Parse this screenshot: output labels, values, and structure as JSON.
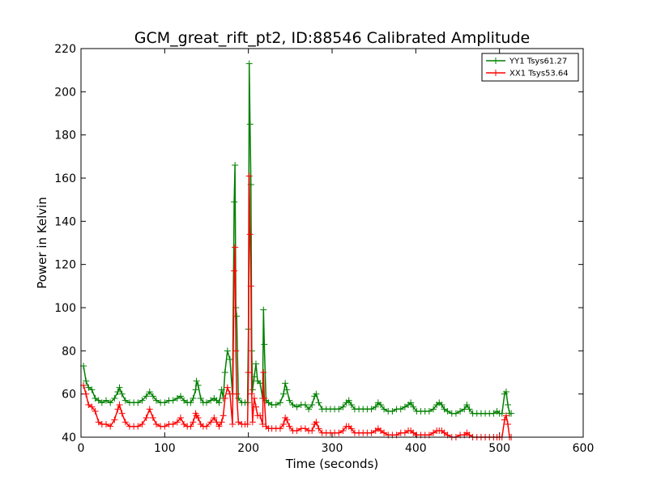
{
  "chart_data": {
    "type": "line",
    "title": "GCM_great_rift_pt2, ID:88546 Calibrated Amplitude",
    "xlabel": "Time (seconds)",
    "ylabel": "Power in Kelvin",
    "xlim": [
      0,
      600
    ],
    "ylim": [
      40,
      220
    ],
    "xticks": [
      0,
      100,
      200,
      300,
      400,
      500,
      600
    ],
    "yticks": [
      40,
      60,
      80,
      100,
      120,
      140,
      160,
      180,
      200,
      220
    ],
    "grid": false,
    "legend_position": "top-right",
    "marker": "plus",
    "series": [
      {
        "name": "YY1 Tsys61.27",
        "color": "#008000",
        "points": [
          [
            3,
            73
          ],
          [
            6,
            66
          ],
          [
            9,
            63
          ],
          [
            13,
            62
          ],
          [
            17,
            58
          ],
          [
            21,
            57
          ],
          [
            25,
            56
          ],
          [
            30,
            57
          ],
          [
            35,
            56
          ],
          [
            40,
            58
          ],
          [
            44,
            61
          ],
          [
            46,
            63
          ],
          [
            49,
            60
          ],
          [
            53,
            57
          ],
          [
            58,
            56
          ],
          [
            63,
            56
          ],
          [
            68,
            56
          ],
          [
            73,
            57
          ],
          [
            78,
            59
          ],
          [
            82,
            61
          ],
          [
            86,
            59
          ],
          [
            90,
            57
          ],
          [
            95,
            56
          ],
          [
            100,
            56
          ],
          [
            105,
            57
          ],
          [
            110,
            57
          ],
          [
            115,
            58
          ],
          [
            119,
            59
          ],
          [
            123,
            57
          ],
          [
            127,
            56
          ],
          [
            131,
            56
          ],
          [
            134,
            58
          ],
          [
            137,
            62
          ],
          [
            138,
            66
          ],
          [
            140,
            64
          ],
          [
            143,
            58
          ],
          [
            146,
            56
          ],
          [
            150,
            56
          ],
          [
            155,
            57
          ],
          [
            159,
            58
          ],
          [
            162,
            57
          ],
          [
            165,
            56
          ],
          [
            168,
            62
          ],
          [
            170,
            58
          ],
          [
            172,
            70
          ],
          [
            175,
            80
          ],
          [
            178,
            76
          ],
          [
            181,
            60
          ],
          [
            183,
            149
          ],
          [
            184,
            166
          ],
          [
            185,
            100
          ],
          [
            186,
            96
          ],
          [
            188,
            58
          ],
          [
            192,
            56
          ],
          [
            196,
            56
          ],
          [
            199,
            56
          ],
          [
            200,
            90
          ],
          [
            201,
            213
          ],
          [
            202,
            185
          ],
          [
            203,
            157
          ],
          [
            204,
            80
          ],
          [
            205,
            62
          ],
          [
            207,
            68
          ],
          [
            209,
            74
          ],
          [
            211,
            66
          ],
          [
            214,
            65
          ],
          [
            217,
            58
          ],
          [
            218,
            99
          ],
          [
            219,
            83
          ],
          [
            221,
            57
          ],
          [
            224,
            56
          ],
          [
            228,
            55
          ],
          [
            233,
            55
          ],
          [
            238,
            56
          ],
          [
            242,
            60
          ],
          [
            244,
            65
          ],
          [
            246,
            62
          ],
          [
            249,
            57
          ],
          [
            253,
            55
          ],
          [
            258,
            54
          ],
          [
            263,
            55
          ],
          [
            268,
            55
          ],
          [
            272,
            53
          ],
          [
            276,
            55
          ],
          [
            279,
            59
          ],
          [
            281,
            60
          ],
          [
            284,
            56
          ],
          [
            288,
            53
          ],
          [
            293,
            53
          ],
          [
            298,
            53
          ],
          [
            303,
            53
          ],
          [
            308,
            53
          ],
          [
            313,
            54
          ],
          [
            317,
            56
          ],
          [
            320,
            57
          ],
          [
            323,
            55
          ],
          [
            327,
            53
          ],
          [
            332,
            53
          ],
          [
            337,
            53
          ],
          [
            342,
            53
          ],
          [
            347,
            53
          ],
          [
            352,
            54
          ],
          [
            355,
            56
          ],
          [
            358,
            55
          ],
          [
            362,
            53
          ],
          [
            367,
            52
          ],
          [
            372,
            52
          ],
          [
            377,
            53
          ],
          [
            382,
            53
          ],
          [
            387,
            54
          ],
          [
            391,
            55
          ],
          [
            394,
            56
          ],
          [
            397,
            54
          ],
          [
            401,
            52
          ],
          [
            406,
            52
          ],
          [
            411,
            52
          ],
          [
            416,
            52
          ],
          [
            421,
            53
          ],
          [
            425,
            55
          ],
          [
            428,
            56
          ],
          [
            431,
            55
          ],
          [
            434,
            53
          ],
          [
            438,
            52
          ],
          [
            443,
            51
          ],
          [
            448,
            51
          ],
          [
            453,
            52
          ],
          [
            458,
            53
          ],
          [
            461,
            55
          ],
          [
            464,
            53
          ],
          [
            468,
            51
          ],
          [
            473,
            51
          ],
          [
            478,
            51
          ],
          [
            483,
            51
          ],
          [
            488,
            51
          ],
          [
            493,
            51
          ],
          [
            497,
            52
          ],
          [
            500,
            51
          ],
          [
            503,
            51
          ],
          [
            506,
            60
          ],
          [
            508,
            61
          ],
          [
            510,
            55
          ],
          [
            512,
            51
          ],
          [
            514,
            51
          ]
        ]
      },
      {
        "name": "XX1 Tsys53.64",
        "color": "#ff0000",
        "points": [
          [
            3,
            64
          ],
          [
            6,
            60
          ],
          [
            9,
            55
          ],
          [
            13,
            54
          ],
          [
            17,
            52
          ],
          [
            21,
            47
          ],
          [
            25,
            46
          ],
          [
            30,
            46
          ],
          [
            35,
            45
          ],
          [
            40,
            48
          ],
          [
            44,
            53
          ],
          [
            46,
            55
          ],
          [
            49,
            51
          ],
          [
            53,
            47
          ],
          [
            58,
            45
          ],
          [
            63,
            45
          ],
          [
            68,
            45
          ],
          [
            73,
            46
          ],
          [
            78,
            49
          ],
          [
            82,
            53
          ],
          [
            86,
            49
          ],
          [
            90,
            46
          ],
          [
            95,
            45
          ],
          [
            100,
            45
          ],
          [
            105,
            46
          ],
          [
            110,
            46
          ],
          [
            115,
            47
          ],
          [
            119,
            49
          ],
          [
            123,
            46
          ],
          [
            127,
            45
          ],
          [
            131,
            45
          ],
          [
            134,
            47
          ],
          [
            137,
            51
          ],
          [
            138,
            50
          ],
          [
            140,
            49
          ],
          [
            143,
            46
          ],
          [
            146,
            45
          ],
          [
            150,
            45
          ],
          [
            155,
            47
          ],
          [
            159,
            49
          ],
          [
            162,
            47
          ],
          [
            165,
            45
          ],
          [
            168,
            47
          ],
          [
            170,
            50
          ],
          [
            172,
            58
          ],
          [
            175,
            63
          ],
          [
            178,
            60
          ],
          [
            181,
            46
          ],
          [
            183,
            117
          ],
          [
            184,
            128
          ],
          [
            185,
            80
          ],
          [
            186,
            60
          ],
          [
            188,
            47
          ],
          [
            192,
            46
          ],
          [
            196,
            46
          ],
          [
            199,
            46
          ],
          [
            200,
            70
          ],
          [
            201,
            161
          ],
          [
            202,
            134
          ],
          [
            203,
            110
          ],
          [
            204,
            60
          ],
          [
            205,
            47
          ],
          [
            207,
            58
          ],
          [
            209,
            54
          ],
          [
            211,
            50
          ],
          [
            214,
            50
          ],
          [
            217,
            46
          ],
          [
            218,
            70
          ],
          [
            219,
            58
          ],
          [
            221,
            45
          ],
          [
            224,
            44
          ],
          [
            228,
            44
          ],
          [
            233,
            44
          ],
          [
            238,
            44
          ],
          [
            242,
            46
          ],
          [
            244,
            49
          ],
          [
            246,
            48
          ],
          [
            249,
            45
          ],
          [
            253,
            43
          ],
          [
            258,
            43
          ],
          [
            263,
            44
          ],
          [
            268,
            44
          ],
          [
            272,
            43
          ],
          [
            276,
            43
          ],
          [
            279,
            46
          ],
          [
            281,
            47
          ],
          [
            284,
            44
          ],
          [
            288,
            42
          ],
          [
            293,
            42
          ],
          [
            298,
            42
          ],
          [
            303,
            42
          ],
          [
            308,
            42
          ],
          [
            313,
            43
          ],
          [
            317,
            45
          ],
          [
            320,
            45
          ],
          [
            323,
            44
          ],
          [
            327,
            42
          ],
          [
            332,
            42
          ],
          [
            337,
            42
          ],
          [
            342,
            42
          ],
          [
            347,
            42
          ],
          [
            352,
            43
          ],
          [
            355,
            44
          ],
          [
            358,
            43
          ],
          [
            362,
            42
          ],
          [
            367,
            41
          ],
          [
            372,
            41
          ],
          [
            377,
            41
          ],
          [
            382,
            42
          ],
          [
            387,
            42
          ],
          [
            391,
            43
          ],
          [
            394,
            43
          ],
          [
            397,
            42
          ],
          [
            401,
            41
          ],
          [
            406,
            41
          ],
          [
            411,
            41
          ],
          [
            416,
            41
          ],
          [
            421,
            42
          ],
          [
            425,
            43
          ],
          [
            428,
            43
          ],
          [
            431,
            43
          ],
          [
            434,
            42
          ],
          [
            438,
            41
          ],
          [
            443,
            40
          ],
          [
            448,
            40
          ],
          [
            453,
            41
          ],
          [
            458,
            41
          ],
          [
            461,
            42
          ],
          [
            464,
            41
          ],
          [
            468,
            40
          ],
          [
            473,
            40
          ],
          [
            478,
            40
          ],
          [
            483,
            40
          ],
          [
            488,
            40
          ],
          [
            493,
            40
          ],
          [
            497,
            40
          ],
          [
            500,
            40
          ],
          [
            503,
            40
          ],
          [
            506,
            48
          ],
          [
            508,
            50
          ],
          [
            510,
            46
          ],
          [
            512,
            40
          ],
          [
            514,
            40
          ]
        ]
      }
    ]
  }
}
